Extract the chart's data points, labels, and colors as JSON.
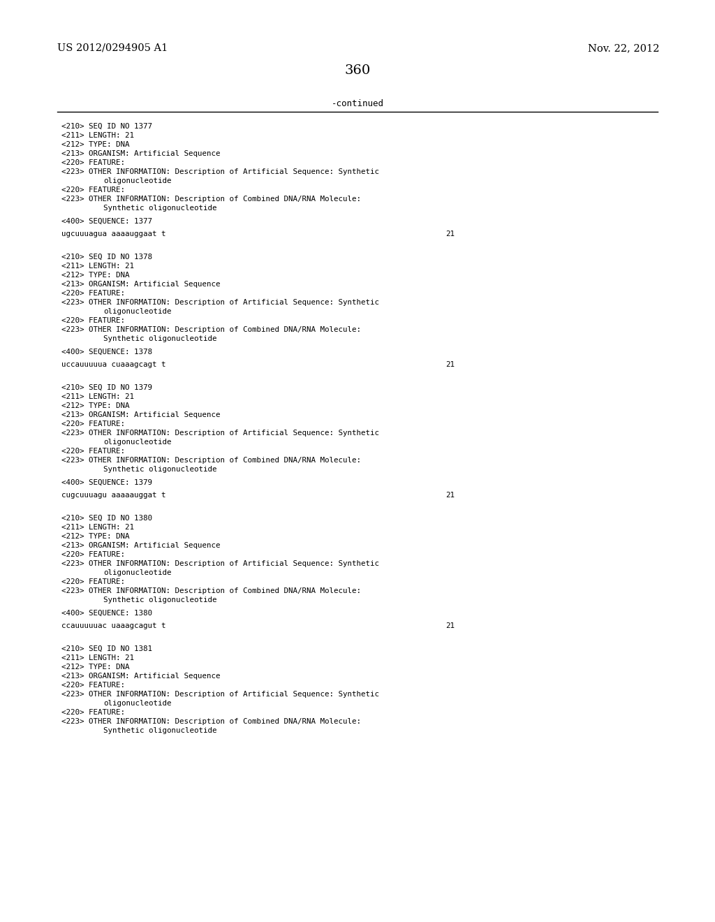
{
  "page_number": "360",
  "top_left": "US 2012/0294905 A1",
  "top_right": "Nov. 22, 2012",
  "continued_label": "-continued",
  "background_color": "#ffffff",
  "text_color": "#000000",
  "content": [
    {
      "type": "seq_block",
      "seq_id": "1377",
      "length": "21",
      "type_val": "DNA",
      "organism": "Artificial Sequence",
      "other_info_1": "Description of Artificial Sequence: Synthetic",
      "other_info_1b": "oligonucleotide",
      "other_info_2": "Description of Combined DNA/RNA Molecule:",
      "other_info_2b": "Synthetic oligonucleotide",
      "sequence_label": "1377",
      "sequence": "ugcuuuagua aaaauggaat t",
      "seq_count": "21"
    },
    {
      "type": "seq_block",
      "seq_id": "1378",
      "length": "21",
      "type_val": "DNA",
      "organism": "Artificial Sequence",
      "other_info_1": "Description of Artificial Sequence: Synthetic",
      "other_info_1b": "oligonucleotide",
      "other_info_2": "Description of Combined DNA/RNA Molecule:",
      "other_info_2b": "Synthetic oligonucleotide",
      "sequence_label": "1378",
      "sequence": "uccauuuuua cuaaagcagt t",
      "seq_count": "21"
    },
    {
      "type": "seq_block",
      "seq_id": "1379",
      "length": "21",
      "type_val": "DNA",
      "organism": "Artificial Sequence",
      "other_info_1": "Description of Artificial Sequence: Synthetic",
      "other_info_1b": "oligonucleotide",
      "other_info_2": "Description of Combined DNA/RNA Molecule:",
      "other_info_2b": "Synthetic oligonucleotide",
      "sequence_label": "1379",
      "sequence": "cugcuuuagu aaaaauggat t",
      "seq_count": "21"
    },
    {
      "type": "seq_block",
      "seq_id": "1380",
      "length": "21",
      "type_val": "DNA",
      "organism": "Artificial Sequence",
      "other_info_1": "Description of Artificial Sequence: Synthetic",
      "other_info_1b": "oligonucleotide",
      "other_info_2": "Description of Combined DNA/RNA Molecule:",
      "other_info_2b": "Synthetic oligonucleotide",
      "sequence_label": "1380",
      "sequence": "ccauuuuuac uaaagcagut t",
      "seq_count": "21"
    },
    {
      "type": "seq_block_partial",
      "seq_id": "1381",
      "length": "21",
      "type_val": "DNA",
      "organism": "Artificial Sequence",
      "other_info_1": "Description of Artificial Sequence: Synthetic",
      "other_info_1b": "oligonucleotide",
      "other_info_2": "Description of Combined DNA/RNA Molecule:",
      "other_info_2b": "Synthetic oligonucleotide"
    }
  ]
}
